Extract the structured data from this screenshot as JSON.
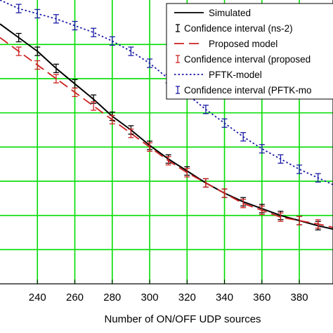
{
  "chart_data": {
    "type": "line",
    "xlabel": "Number of ON/OFF UDP sources",
    "ylabel": "",
    "title": "",
    "xlim": [
      220,
      398
    ],
    "ylim": [
      0.0,
      8.3
    ],
    "x_ticks": [
      240,
      260,
      280,
      300,
      320,
      340,
      360,
      380
    ],
    "y_grid": [
      1,
      2,
      3,
      4,
      5,
      6,
      7
    ],
    "grid": true,
    "legend_position": "top-right",
    "colors": {
      "grid": "#00dd00",
      "simulated": "#000000",
      "proposed": "#cc2222",
      "pftk": "#1a1aa8"
    },
    "legend": [
      "Simulated",
      "Confidence interval (ns-2)",
      "Proposed model",
      "Confidence interval (proposed",
      "PFTK-model",
      "Confidence interval (PFTK-mo"
    ],
    "series": [
      {
        "name": "Simulated",
        "style": "solid",
        "x": [
          220,
          230,
          240,
          250,
          260,
          270,
          280,
          290,
          300,
          310,
          320,
          330,
          340,
          350,
          360,
          370,
          380,
          390,
          398
        ],
        "y": [
          7.6,
          7.2,
          6.8,
          6.3,
          5.85,
          5.4,
          4.9,
          4.5,
          4.05,
          3.65,
          3.3,
          2.95,
          2.65,
          2.4,
          2.2,
          2.0,
          1.85,
          1.7,
          1.6
        ]
      },
      {
        "name": "Proposed model",
        "style": "dashed",
        "x": [
          220,
          230,
          240,
          250,
          260,
          270,
          280,
          290,
          300,
          310,
          320,
          330,
          340,
          350,
          360,
          370,
          380,
          390,
          398
        ],
        "y": [
          7.2,
          6.8,
          6.4,
          6.0,
          5.6,
          5.2,
          4.8,
          4.4,
          4.0,
          3.6,
          3.25,
          2.95,
          2.65,
          2.35,
          2.15,
          1.95,
          1.85,
          1.75,
          1.65
        ]
      },
      {
        "name": "PFTK-model",
        "style": "dotted",
        "x": [
          220,
          230,
          240,
          250,
          260,
          270,
          280,
          290,
          300,
          310,
          320,
          330,
          340,
          350,
          360,
          370,
          380,
          390,
          398
        ],
        "y": [
          8.3,
          8.05,
          7.9,
          7.75,
          7.55,
          7.35,
          7.1,
          6.8,
          6.45,
          6.0,
          5.55,
          5.1,
          4.7,
          4.3,
          3.95,
          3.65,
          3.35,
          3.1,
          2.9
        ]
      }
    ]
  }
}
